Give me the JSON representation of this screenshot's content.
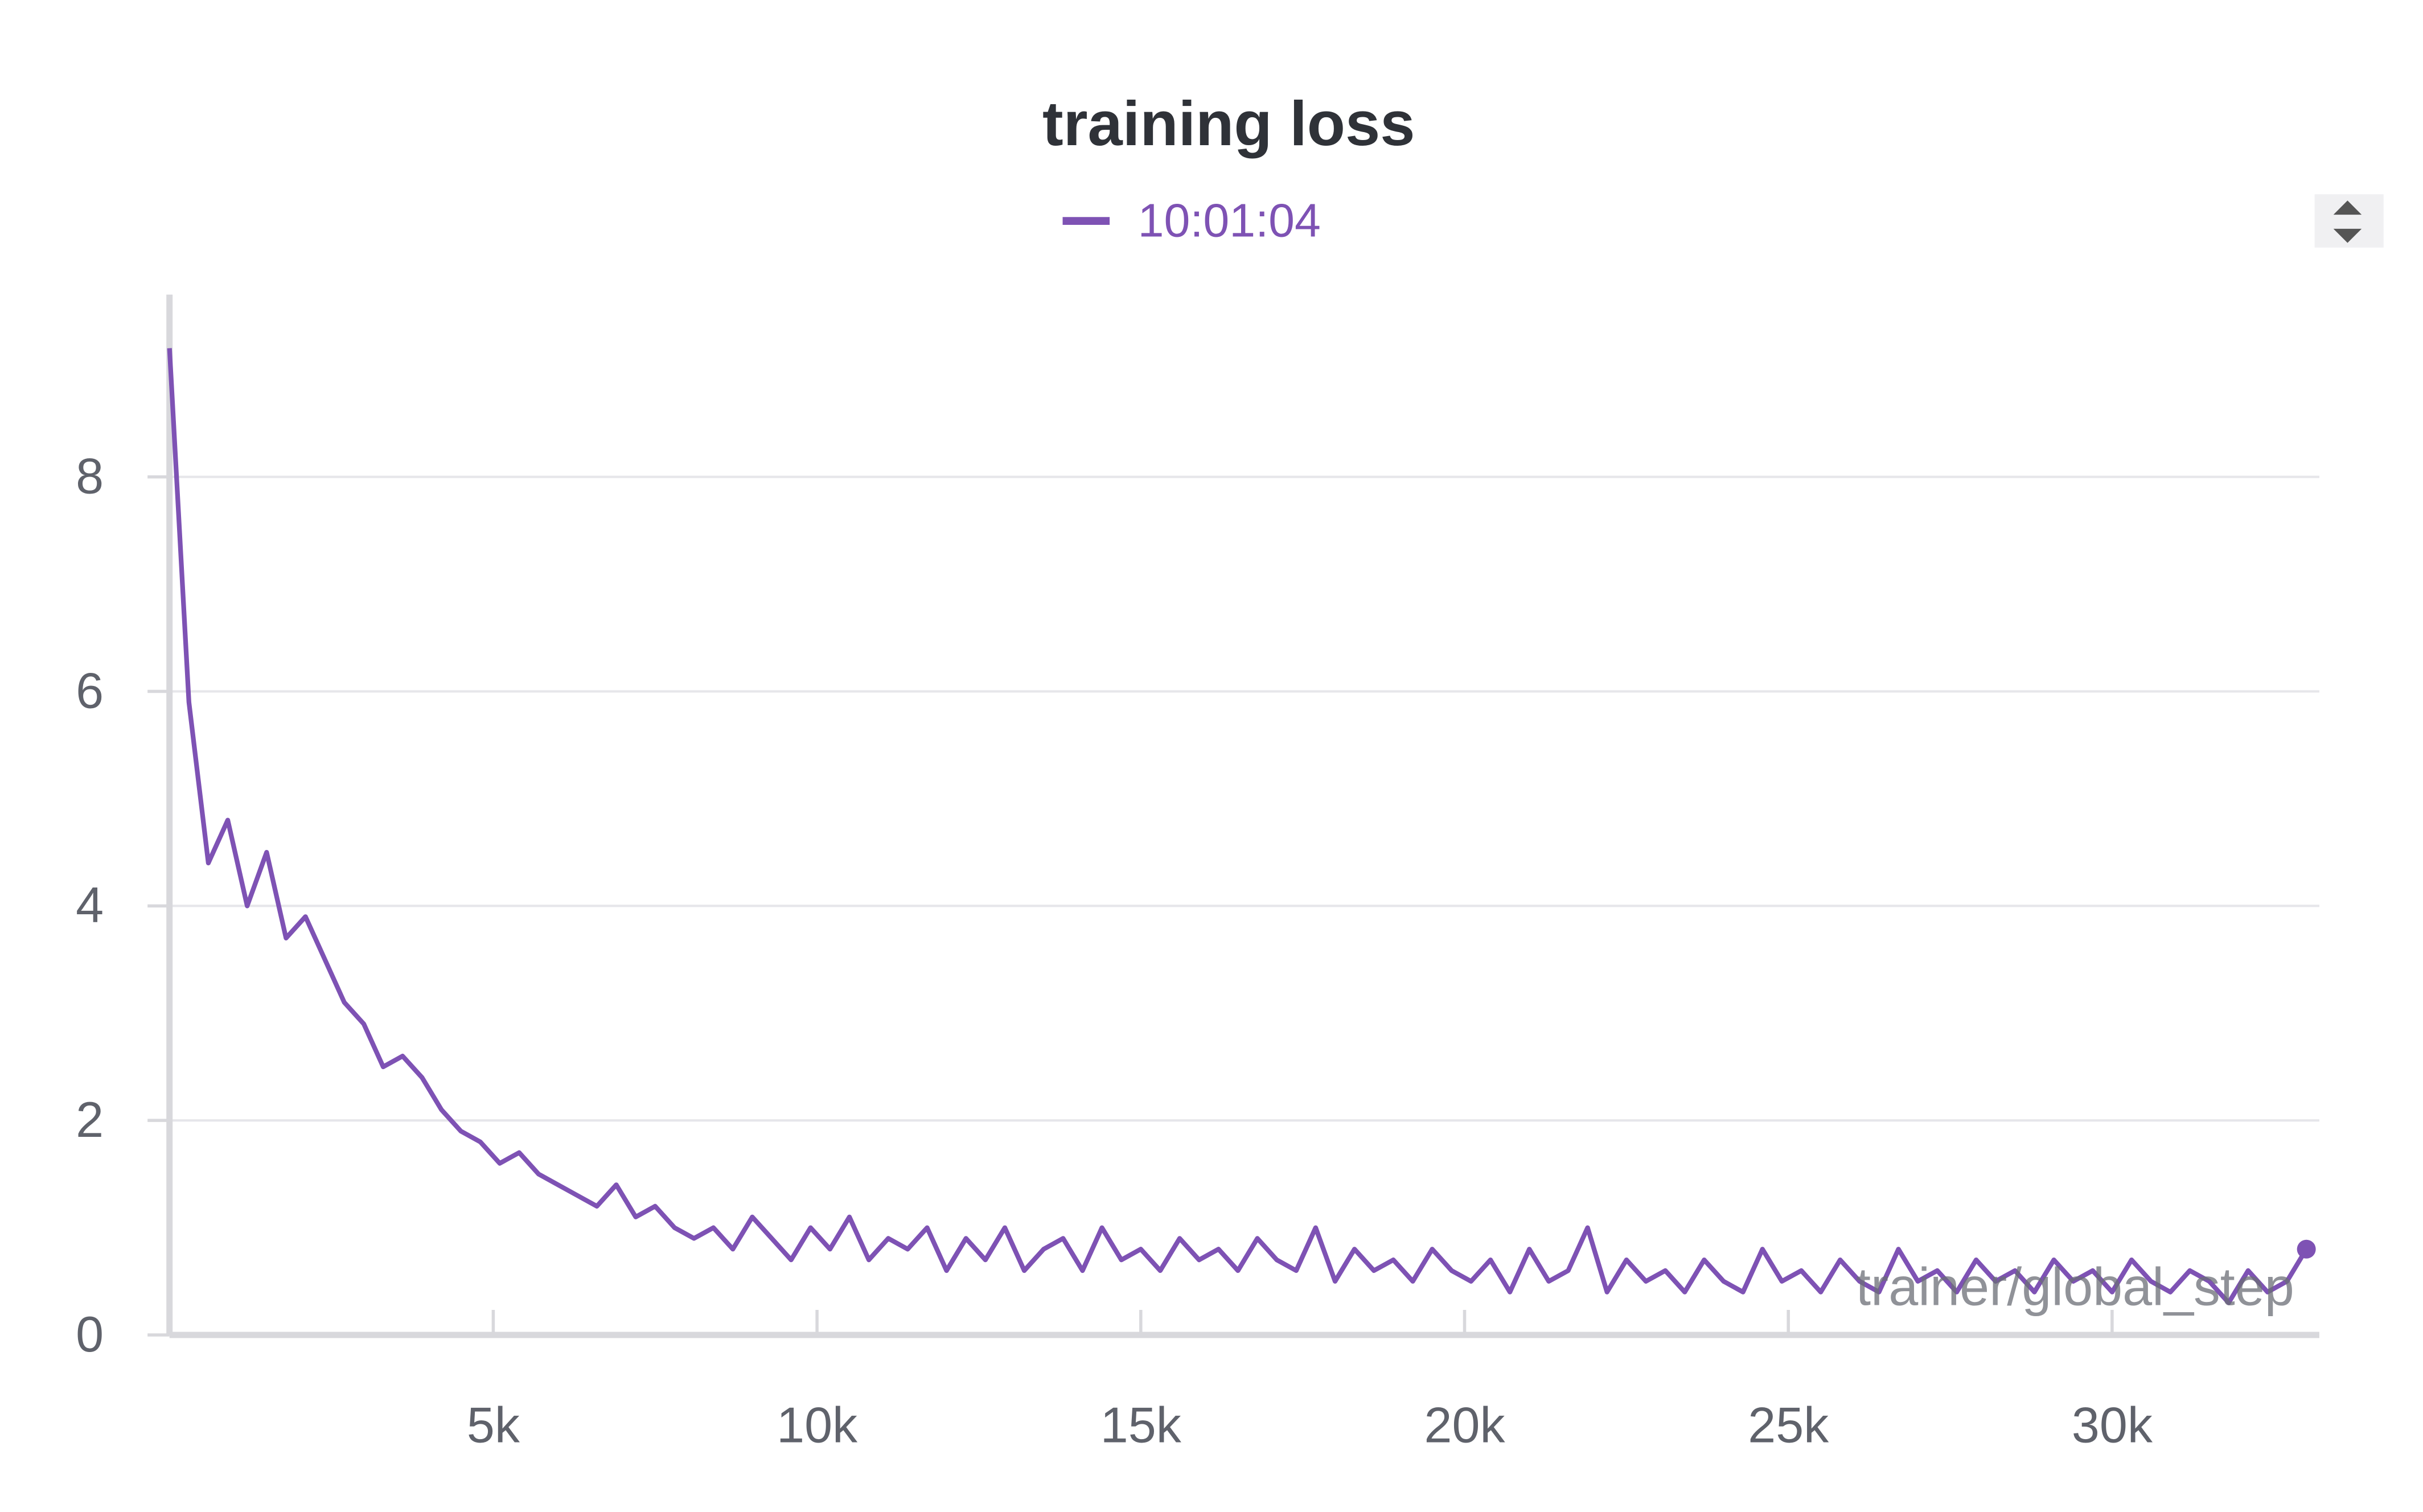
{
  "chart_data": {
    "type": "line",
    "title": "training loss",
    "x_label": "trainer/global_step",
    "x": [
      0,
      300,
      600,
      900,
      1200,
      1500,
      1800,
      2100,
      2400,
      2700,
      3000,
      3300,
      3600,
      3900,
      4200,
      4500,
      4800,
      5100,
      5400,
      5700,
      6000,
      6300,
      6600,
      6900,
      7200,
      7500,
      7800,
      8100,
      8400,
      8700,
      9000,
      9300,
      9600,
      9900,
      10200,
      10500,
      10800,
      11100,
      11400,
      11700,
      12000,
      12300,
      12600,
      12900,
      13200,
      13500,
      13800,
      14100,
      14400,
      14700,
      15000,
      15300,
      15600,
      15900,
      16200,
      16500,
      16800,
      17100,
      17400,
      17700,
      18000,
      18300,
      18600,
      18900,
      19200,
      19500,
      19800,
      20100,
      20400,
      20700,
      21000,
      21300,
      21600,
      21900,
      22200,
      22500,
      22800,
      23100,
      23400,
      23700,
      24000,
      24300,
      24600,
      24900,
      25200,
      25500,
      25800,
      26100,
      26400,
      26700,
      27000,
      27300,
      27600,
      27900,
      28200,
      28500,
      28800,
      29100,
      29400,
      29700,
      30000,
      30300,
      30600,
      30900,
      31200,
      31500,
      31800,
      32100,
      32400,
      32700,
      33000
    ],
    "series": [
      {
        "name": "10:01:04",
        "color": "#7e52b4",
        "values": [
          9.2,
          5.9,
          4.4,
          4.8,
          4.0,
          4.5,
          3.7,
          3.9,
          3.5,
          3.1,
          2.9,
          2.5,
          2.6,
          2.4,
          2.1,
          1.9,
          1.8,
          1.6,
          1.7,
          1.5,
          1.4,
          1.3,
          1.2,
          1.4,
          1.1,
          1.2,
          1.0,
          0.9,
          1.0,
          0.8,
          1.1,
          0.9,
          0.7,
          1.0,
          0.8,
          1.1,
          0.7,
          0.9,
          0.8,
          1.0,
          0.6,
          0.9,
          0.7,
          1.0,
          0.6,
          0.8,
          0.9,
          0.6,
          1.0,
          0.7,
          0.8,
          0.6,
          0.9,
          0.7,
          0.8,
          0.6,
          0.9,
          0.7,
          0.6,
          1.0,
          0.5,
          0.8,
          0.6,
          0.7,
          0.5,
          0.8,
          0.6,
          0.5,
          0.7,
          0.4,
          0.8,
          0.5,
          0.6,
          1.0,
          0.4,
          0.7,
          0.5,
          0.6,
          0.4,
          0.7,
          0.5,
          0.4,
          0.8,
          0.5,
          0.6,
          0.4,
          0.7,
          0.5,
          0.4,
          0.8,
          0.5,
          0.6,
          0.4,
          0.7,
          0.5,
          0.6,
          0.4,
          0.7,
          0.5,
          0.6,
          0.4,
          0.7,
          0.5,
          0.4,
          0.6,
          0.5,
          0.3,
          0.6,
          0.4,
          0.5,
          0.8
        ]
      }
    ],
    "xlim": [
      0,
      33200
    ],
    "ylim": [
      0,
      9.7
    ],
    "xticks": [
      {
        "value": 5000,
        "label": "5k"
      },
      {
        "value": 10000,
        "label": "10k"
      },
      {
        "value": 15000,
        "label": "15k"
      },
      {
        "value": 20000,
        "label": "20k"
      },
      {
        "value": 25000,
        "label": "25k"
      },
      {
        "value": 30000,
        "label": "30k"
      }
    ],
    "yticks": [
      0,
      2,
      4,
      6,
      8
    ],
    "grid": true
  }
}
